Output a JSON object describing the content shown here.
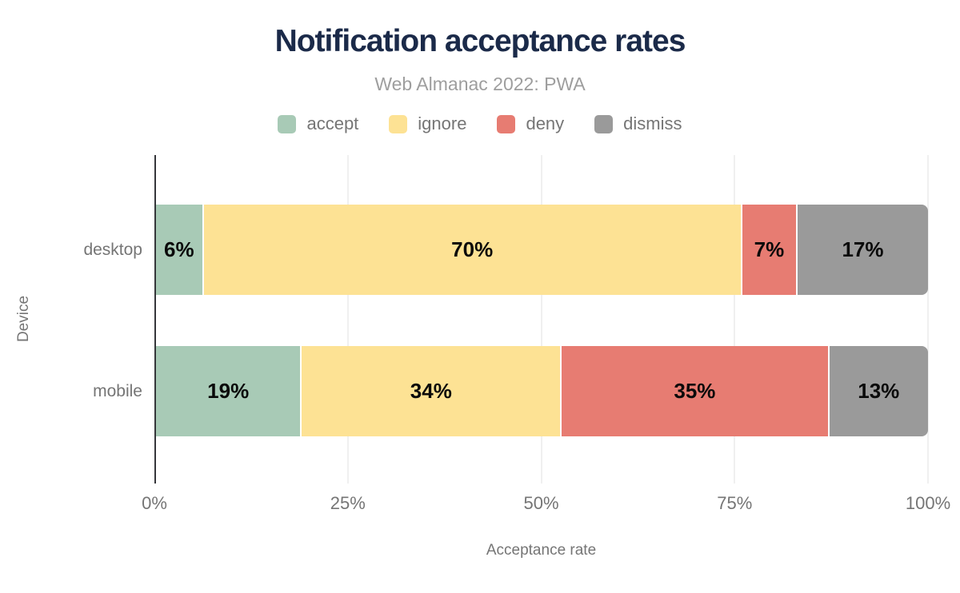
{
  "header": {
    "title": "Notification acceptance rates",
    "subtitle": "Web Almanac 2022: PWA"
  },
  "colors": {
    "title_navy": "#1b2a49",
    "subtitle_gray": "#9e9e9e",
    "axis_text_gray": "#757575",
    "axis_line": "#35363a",
    "gridline": "#f0f0f0",
    "accept_green": "#a8cab6",
    "ignore_yellow": "#fde294",
    "deny_red": "#e77c72",
    "dismiss_gray": "#9a9a9a"
  },
  "chart_data": {
    "type": "bar",
    "orientation": "horizontal",
    "stacked": true,
    "title": "Notification acceptance rates",
    "subtitle": "Web Almanac 2022: PWA",
    "xlabel": "Acceptance rate",
    "ylabel": "Device",
    "categories": [
      "desktop",
      "mobile"
    ],
    "series": [
      {
        "name": "accept",
        "color": "#a8cab6",
        "values": [
          6,
          19
        ],
        "labels": [
          "6%",
          "19%"
        ]
      },
      {
        "name": "ignore",
        "color": "#fde294",
        "values": [
          70,
          34
        ],
        "labels": [
          "70%",
          "34%"
        ]
      },
      {
        "name": "deny",
        "color": "#e77c72",
        "values": [
          7,
          35
        ],
        "labels": [
          "7%",
          "35%"
        ]
      },
      {
        "name": "dismiss",
        "color": "#9a9a9a",
        "values": [
          17,
          13
        ],
        "labels": [
          "17%",
          "13%"
        ]
      }
    ],
    "xlim": [
      0,
      100
    ],
    "x_ticks": [
      {
        "label": "0%",
        "value": 0
      },
      {
        "label": "25%",
        "value": 25
      },
      {
        "label": "50%",
        "value": 50
      },
      {
        "label": "75%",
        "value": 75
      },
      {
        "label": "100%",
        "value": 100
      }
    ],
    "grid": "vertical",
    "legend_position": "top",
    "legend": [
      {
        "label": "accept",
        "color": "#a8cab6"
      },
      {
        "label": "ignore",
        "color": "#fde294"
      },
      {
        "label": "deny",
        "color": "#e77c72"
      },
      {
        "label": "dismiss",
        "color": "#9a9a9a"
      }
    ]
  }
}
